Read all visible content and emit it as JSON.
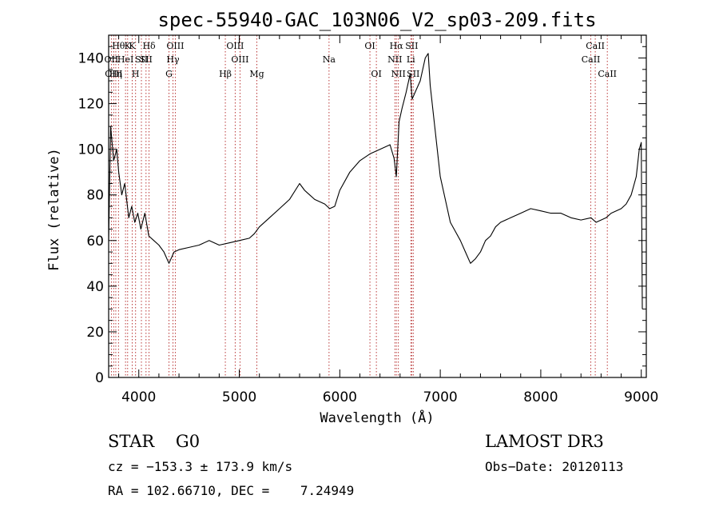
{
  "chart_data": {
    "type": "line",
    "title": "spec-55940-GAC_103N06_V2_sp03-209.fits",
    "xlabel": "Wavelength (Å)",
    "ylabel": "Flux (relative)",
    "xlim": [
      3700,
      9050
    ],
    "ylim": [
      0,
      150
    ],
    "xticks": [
      4000,
      5000,
      6000,
      7000,
      8000,
      9000
    ],
    "xtick_labels": [
      "4000",
      "5000",
      "6000",
      "7000",
      "8000",
      "9000"
    ],
    "yticks": [
      0,
      20,
      40,
      60,
      80,
      100,
      120,
      140
    ],
    "ytick_labels": [
      "0",
      "20",
      "40",
      "60",
      "80",
      "100",
      "120",
      "140"
    ],
    "series": [
      {
        "name": "flux",
        "color": "#000000",
        "x": [
          3700,
          3720,
          3750,
          3780,
          3800,
          3830,
          3860,
          3900,
          3930,
          3960,
          3990,
          4020,
          4060,
          4100,
          4150,
          4200,
          4250,
          4300,
          4350,
          4400,
          4500,
          4600,
          4700,
          4800,
          4900,
          5000,
          5100,
          5150,
          5200,
          5300,
          5400,
          5500,
          5600,
          5650,
          5700,
          5750,
          5800,
          5850,
          5900,
          5950,
          6000,
          6100,
          6200,
          6300,
          6400,
          6500,
          6540,
          6563,
          6590,
          6620,
          6660,
          6700,
          6720,
          6760,
          6800,
          6850,
          6880,
          6900,
          6950,
          7000,
          7050,
          7100,
          7150,
          7200,
          7250,
          7300,
          7350,
          7400,
          7450,
          7500,
          7550,
          7600,
          7700,
          7800,
          7900,
          8000,
          8100,
          8200,
          8300,
          8400,
          8500,
          8550,
          8600,
          8650,
          8700,
          8800,
          8850,
          8900,
          8950,
          8980,
          9000,
          9010
        ],
        "y": [
          60,
          110,
          95,
          100,
          90,
          80,
          85,
          70,
          75,
          68,
          72,
          65,
          72,
          62,
          60,
          58,
          55,
          50,
          55,
          56,
          57,
          58,
          60,
          58,
          59,
          60,
          61,
          63,
          66,
          70,
          74,
          78,
          85,
          82,
          80,
          78,
          77,
          76,
          74,
          75,
          82,
          90,
          95,
          98,
          100,
          102,
          96,
          88,
          112,
          118,
          125,
          133,
          122,
          126,
          130,
          140,
          142,
          128,
          108,
          88,
          78,
          68,
          64,
          60,
          55,
          50,
          52,
          55,
          60,
          62,
          66,
          68,
          70,
          72,
          74,
          73,
          72,
          72,
          70,
          69,
          70,
          68,
          69,
          70,
          72,
          74,
          76,
          80,
          88,
          100,
          103,
          30
        ]
      }
    ],
    "line_markers": [
      {
        "wave": 3727,
        "labels": [
          "OII"
        ],
        "row": 1
      },
      {
        "wave": 3750,
        "labels": [
          "OIII"
        ],
        "row": 2
      },
      {
        "wave": 3771,
        "labels": [
          "Hη"
        ],
        "row": 2
      },
      {
        "wave": 3798,
        "labels": [
          "Hθ"
        ],
        "row": 0
      },
      {
        "wave": 3868,
        "labels": [
          "HeI"
        ],
        "row": 1
      },
      {
        "wave": 3889,
        "labels": [
          "K"
        ],
        "row": 0
      },
      {
        "wave": 3934,
        "labels": [
          "K"
        ],
        "row": 0
      },
      {
        "wave": 3968,
        "labels": [
          "H"
        ],
        "row": 2
      },
      {
        "wave": 4026,
        "labels": [
          "SII"
        ],
        "row": 1
      },
      {
        "wave": 4072,
        "labels": [
          "SII"
        ],
        "row": 1
      },
      {
        "wave": 4102,
        "labels": [
          "Hδ"
        ],
        "row": 0
      },
      {
        "wave": 4300,
        "labels": [
          "G"
        ],
        "row": 2
      },
      {
        "wave": 4340,
        "labels": [
          "Hγ"
        ],
        "row": 1
      },
      {
        "wave": 4363,
        "labels": [
          "OIII"
        ],
        "row": 0
      },
      {
        "wave": 4861,
        "labels": [
          "Hβ"
        ],
        "row": 2
      },
      {
        "wave": 4959,
        "labels": [
          "OIII"
        ],
        "row": 0
      },
      {
        "wave": 5007,
        "labels": [
          "OIII"
        ],
        "row": 1
      },
      {
        "wave": 5175,
        "labels": [
          "Mg"
        ],
        "row": 2
      },
      {
        "wave": 5893,
        "labels": [
          "Na"
        ],
        "row": 1
      },
      {
        "wave": 6300,
        "labels": [
          "OI"
        ],
        "row": 0
      },
      {
        "wave": 6364,
        "labels": [
          "OI"
        ],
        "row": 2
      },
      {
        "wave": 6548,
        "labels": [
          "NII"
        ],
        "row": 1
      },
      {
        "wave": 6563,
        "labels": [
          "Hα"
        ],
        "row": 0
      },
      {
        "wave": 6583,
        "labels": [
          "NII"
        ],
        "row": 2
      },
      {
        "wave": 6707,
        "labels": [
          "Li"
        ],
        "row": 1
      },
      {
        "wave": 6716,
        "labels": [
          "SII"
        ],
        "row": 0
      },
      {
        "wave": 6731,
        "labels": [
          "SII"
        ],
        "row": 2
      },
      {
        "wave": 8498,
        "labels": [
          "CaII"
        ],
        "row": 1
      },
      {
        "wave": 8542,
        "labels": [
          "CaII"
        ],
        "row": 0
      },
      {
        "wave": 8662,
        "labels": [
          "CaII"
        ],
        "row": 2
      }
    ],
    "marker_color": "#b22222"
  },
  "info": {
    "class_text": "STAR    G0",
    "survey_text": "LAMOST DR3",
    "cz_text": "cz = −153.3 ± 173.9 km/s",
    "obs_date_text": "Obs−Date: 20120113",
    "radec_text": "RA = 102.66710, DEC =    7.24949"
  }
}
